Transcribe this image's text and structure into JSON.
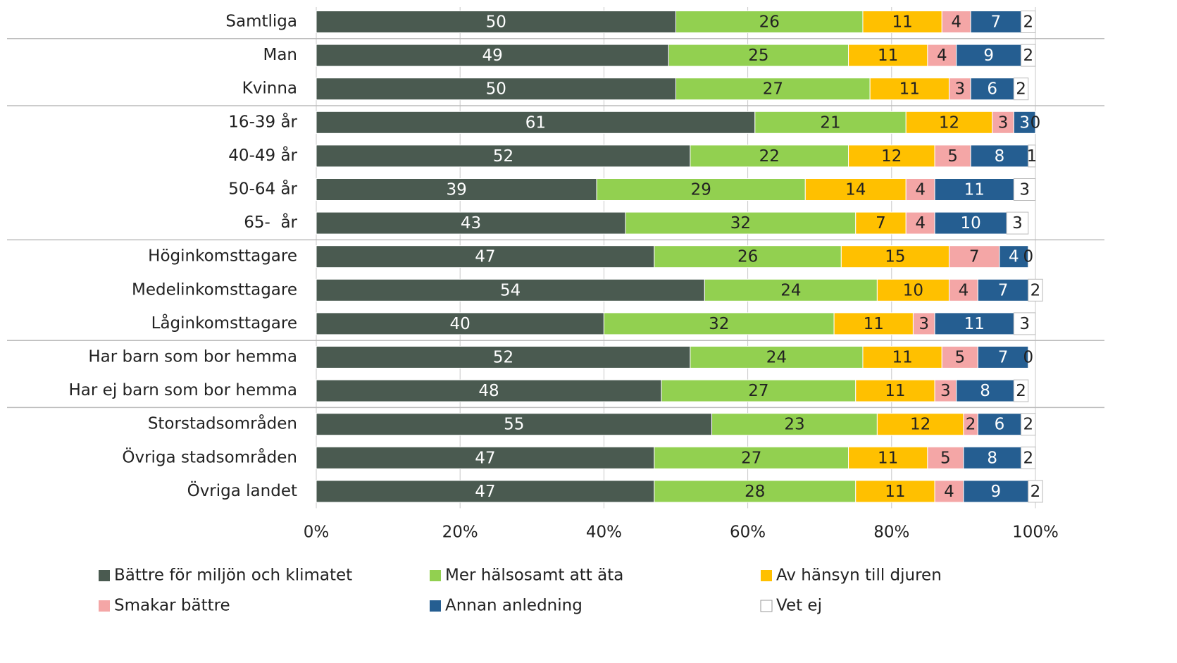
{
  "chart_data": {
    "type": "stacked_barh",
    "categories": [
      "Samtliga",
      "Man",
      "Kvinna",
      "16-39 år",
      "40-49 år",
      "50-64 år",
      "65-  år",
      "Höginkomsttagare",
      "Medelinkomsttagare",
      "Låginkomsttagare",
      "Har barn som bor hemma",
      "Har ej barn som bor hemma",
      "Storstadsområden",
      "Övriga stadsområden",
      "Övriga landet"
    ],
    "series": [
      {
        "name": "Bättre för miljön och klimatet",
        "color": "#4a5a50",
        "values": [
          50,
          49,
          50,
          61,
          52,
          39,
          43,
          47,
          54,
          40,
          52,
          48,
          55,
          47,
          47
        ]
      },
      {
        "name": "Mer hälsosamt att äta",
        "color": "#92d050",
        "values": [
          26,
          25,
          27,
          21,
          22,
          29,
          32,
          26,
          24,
          32,
          24,
          27,
          23,
          27,
          28
        ]
      },
      {
        "name": "Av hänsyn till djuren",
        "color": "#ffc000",
        "values": [
          11,
          11,
          11,
          12,
          12,
          14,
          7,
          15,
          10,
          11,
          11,
          11,
          12,
          11,
          11
        ]
      },
      {
        "name": "Smakar bättre",
        "color": "#f4a6a6",
        "values": [
          4,
          4,
          3,
          3,
          5,
          4,
          4,
          7,
          4,
          3,
          5,
          3,
          2,
          5,
          4
        ]
      },
      {
        "name": "Annan anledning",
        "color": "#255e91",
        "values": [
          7,
          9,
          6,
          3,
          8,
          11,
          10,
          4,
          7,
          11,
          7,
          8,
          6,
          8,
          9
        ]
      },
      {
        "name": "Vet ej",
        "color": "#ffffff",
        "values": [
          2,
          2,
          2,
          0,
          1,
          3,
          3,
          0,
          2,
          3,
          0,
          2,
          2,
          2,
          2
        ]
      }
    ],
    "xlim": [
      0,
      100
    ],
    "xticks": [
      {
        "value": 0,
        "label": "0%"
      },
      {
        "value": 20,
        "label": "20%"
      },
      {
        "value": 40,
        "label": "40%"
      },
      {
        "value": 60,
        "label": "60%"
      },
      {
        "value": 80,
        "label": "80%"
      },
      {
        "value": 100,
        "label": "100%"
      }
    ],
    "grid": true,
    "legend": "bottom"
  }
}
